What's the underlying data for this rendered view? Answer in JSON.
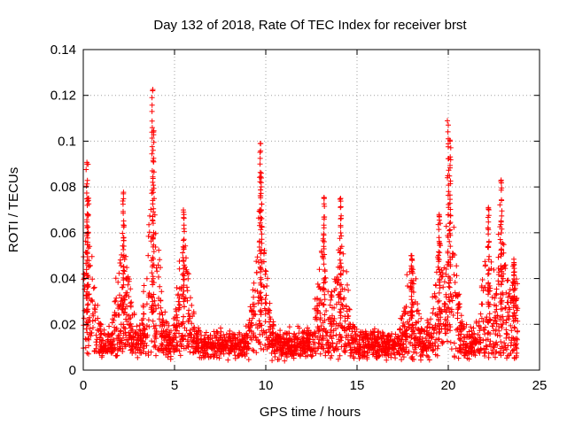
{
  "chart_data": {
    "type": "scatter",
    "title": "Day 132 of 2018, Rate Of TEC Index for receiver brst",
    "xlabel": "GPS time / hours",
    "ylabel": "ROTI / TECUs",
    "xlim": [
      0,
      25
    ],
    "ylim": [
      0,
      0.14
    ],
    "xticks": [
      0,
      5,
      10,
      15,
      20,
      25
    ],
    "xtick_labels": [
      "0",
      "5",
      "10",
      "15",
      "20",
      "25"
    ],
    "yticks": [
      0,
      0.02,
      0.04,
      0.06,
      0.08,
      0.1,
      0.12,
      0.14
    ],
    "ytick_labels": [
      "0",
      "0.02",
      "0.04",
      "0.06",
      "0.08",
      "0.1",
      "0.12",
      "0.14"
    ],
    "grid": true,
    "marker": "+",
    "marker_color": "#ff0000",
    "series": [
      {
        "name": "ROTI",
        "note": "dense scatter of per-satellite ROTI values; baseline ~0.005-0.03 TECU/min with peaks listed",
        "baseline_range": [
          0.004,
          0.03
        ],
        "data_x_range": [
          0,
          23.8
        ],
        "peaks": [
          {
            "x": 0.2,
            "y": 0.09
          },
          {
            "x": 0.25,
            "y": 0.075
          },
          {
            "x": 2.2,
            "y": 0.077
          },
          {
            "x": 3.8,
            "y": 0.122
          },
          {
            "x": 3.85,
            "y": 0.104
          },
          {
            "x": 5.5,
            "y": 0.069
          },
          {
            "x": 9.7,
            "y": 0.099
          },
          {
            "x": 9.75,
            "y": 0.086
          },
          {
            "x": 13.2,
            "y": 0.075
          },
          {
            "x": 14.1,
            "y": 0.075
          },
          {
            "x": 18.0,
            "y": 0.05
          },
          {
            "x": 19.5,
            "y": 0.068
          },
          {
            "x": 20.0,
            "y": 0.107
          },
          {
            "x": 20.1,
            "y": 0.1
          },
          {
            "x": 22.2,
            "y": 0.071
          },
          {
            "x": 22.9,
            "y": 0.083
          },
          {
            "x": 23.6,
            "y": 0.047
          }
        ]
      }
    ]
  }
}
